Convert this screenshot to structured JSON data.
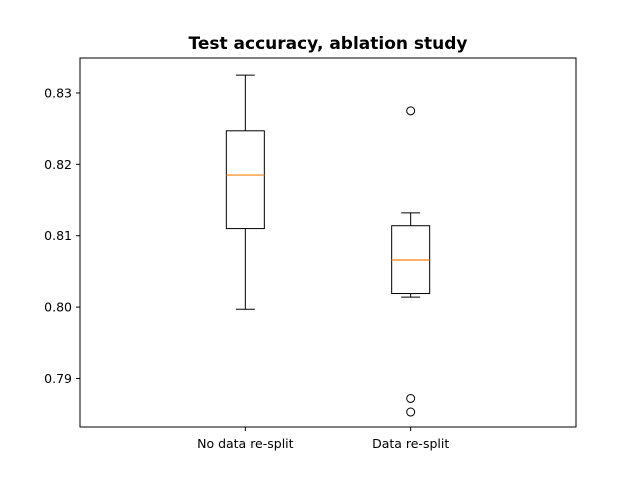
{
  "chart_data": {
    "type": "box",
    "title": "Test accuracy, ablation study",
    "xlabel": "",
    "ylabel": "",
    "ylim": [
      0.7832,
      0.8349
    ],
    "yticks": [
      "0.79",
      "0.80",
      "0.81",
      "0.82",
      "0.83"
    ],
    "categories": [
      "No data re-split",
      "Data re-split"
    ],
    "boxes": [
      {
        "whisker_low": 0.7997,
        "q1": 0.811,
        "median": 0.8185,
        "q3": 0.8247,
        "whisker_high": 0.8325,
        "outliers": []
      },
      {
        "whisker_low": 0.8014,
        "q1": 0.8019,
        "median": 0.8066,
        "q3": 0.8114,
        "whisker_high": 0.8132,
        "outliers": [
          0.8275,
          0.7872,
          0.7853
        ]
      }
    ],
    "grid": false,
    "colors": {
      "box": "#000000",
      "median": "#ff7f0e"
    }
  }
}
